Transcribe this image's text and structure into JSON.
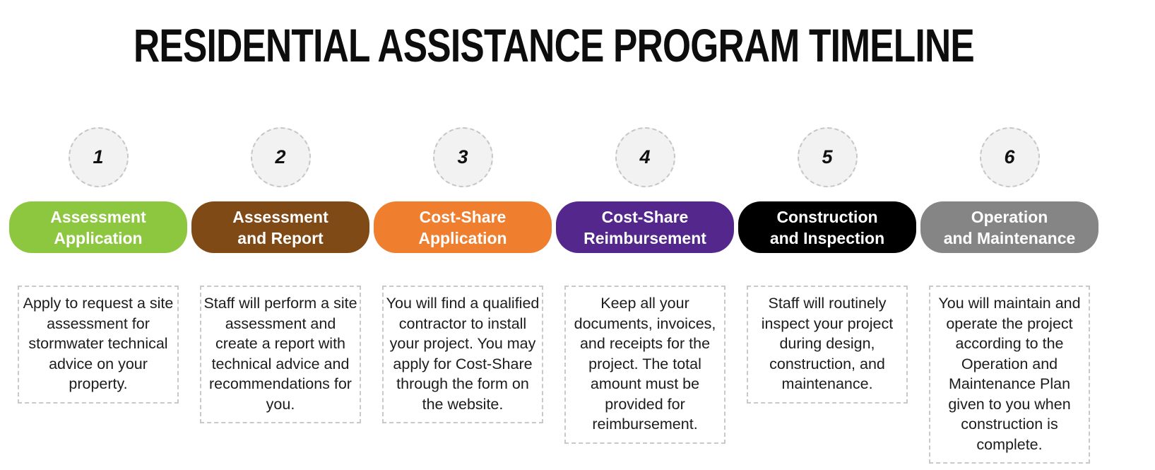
{
  "title": "RESIDENTIAL ASSISTANCE PROGRAM TIMELINE",
  "colors": {
    "background": "#ffffff",
    "title_text": "#0d0d0d",
    "body_text": "#1c1c1c",
    "pill_text": "#ffffff",
    "circle_fill": "#f2f2f2",
    "circle_border": "#c6c6c6",
    "box_border": "#c9c9c9"
  },
  "steps": [
    {
      "number": "1",
      "label_line1": "Assessment",
      "label_line2": "Application",
      "color": "#8DC63F",
      "description": "Apply to request a site assessment for stormwater technical advice on your property."
    },
    {
      "number": "2",
      "label_line1": "Assessment",
      "label_line2": "and Report",
      "color": "#7F4A15",
      "description": "Staff will perform a site assessment and create a report with technical advice and recommendations for you."
    },
    {
      "number": "3",
      "label_line1": "Cost-Share",
      "label_line2": "Application",
      "color": "#EF7E2E",
      "description": "You will find a qualified contractor to install your project. You may apply for Cost-Share through the form on the website."
    },
    {
      "number": "4",
      "label_line1": "Cost-Share",
      "label_line2": "Reimbursement",
      "color": "#53278C",
      "description": "Keep all your documents, invoices, and receipts for the project. The total amount must be provided for reimbursement."
    },
    {
      "number": "5",
      "label_line1": "Construction",
      "label_line2": "and Inspection",
      "color": "#000000",
      "description": "Staff will routinely inspect your project during design, construction, and maintenance."
    },
    {
      "number": "6",
      "label_line1": "Operation",
      "label_line2": "and Maintenance",
      "color": "#858585",
      "description": "You will maintain and operate the project according to the Operation and Maintenance Plan given to you when construction is complete."
    }
  ]
}
